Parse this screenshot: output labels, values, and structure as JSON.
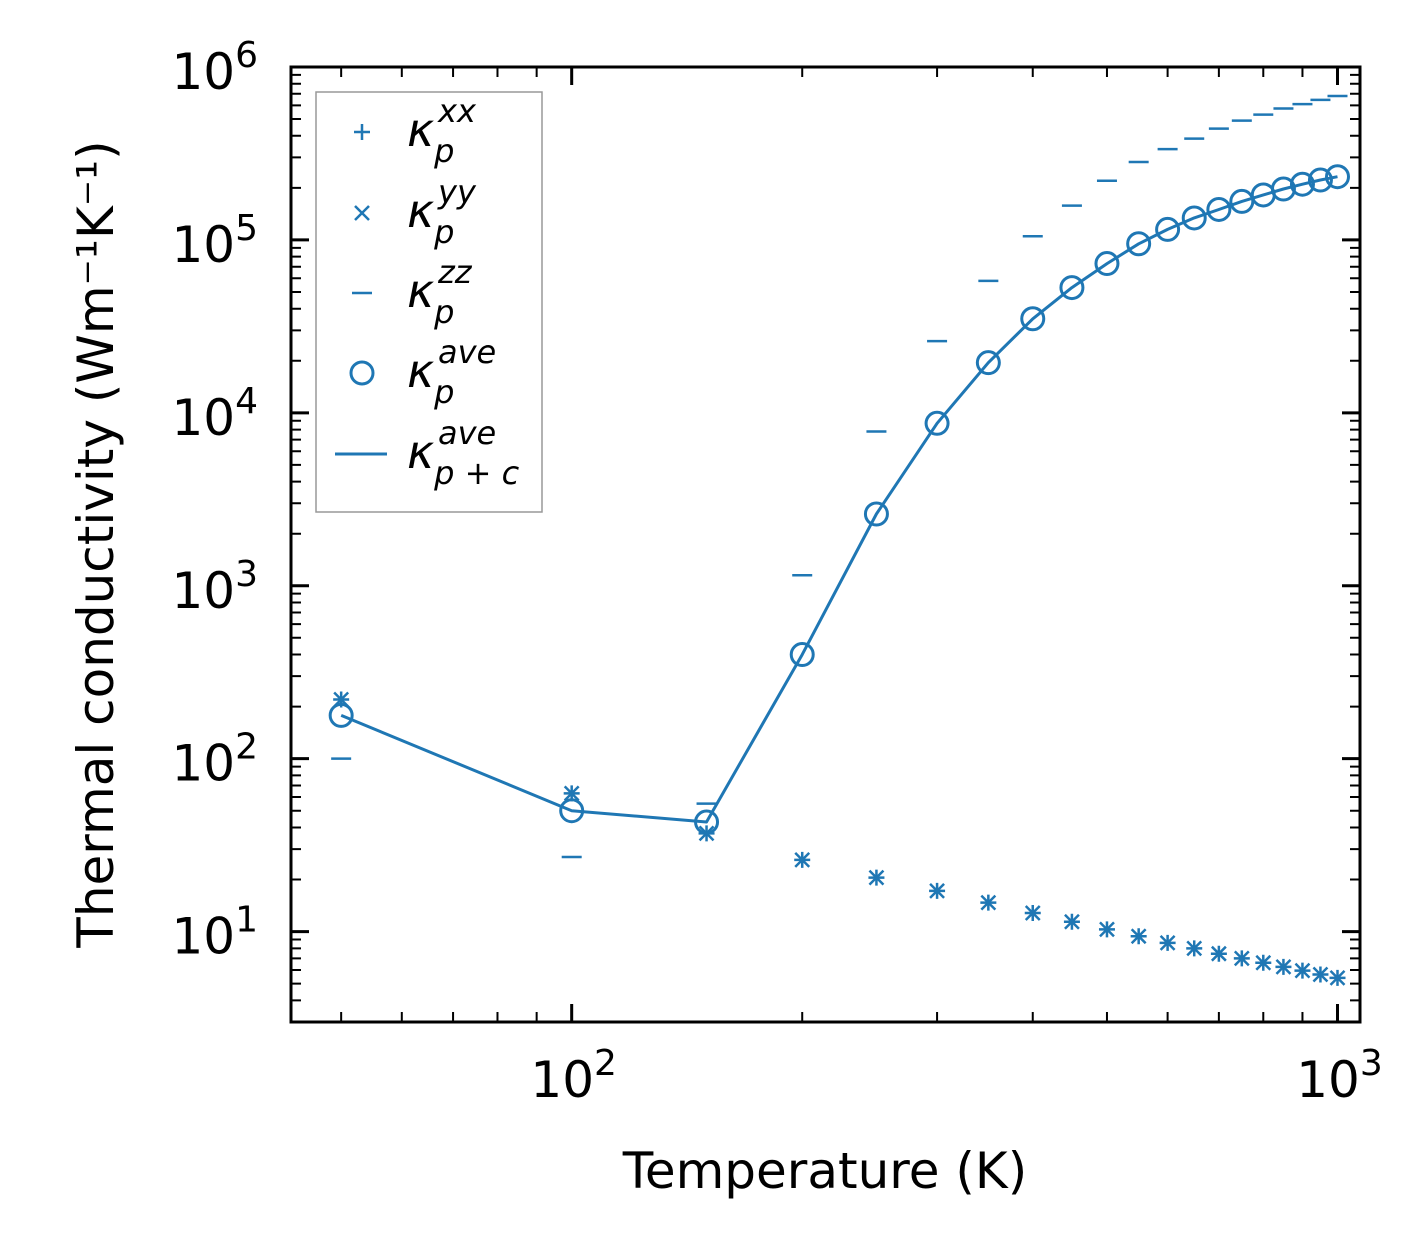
{
  "chart_data": {
    "type": "scatter",
    "xscale": "log",
    "yscale": "log",
    "xlabel": "Temperature (K)",
    "ylabel": "Thermal conductivity (Wm⁻¹K⁻¹)",
    "xlim": [
      43,
      1070
    ],
    "ylim": [
      3,
      1000000
    ],
    "x_tick_labels": [
      {
        "value": 100,
        "base": "10",
        "exp": "2"
      },
      {
        "value": 1000,
        "base": "10",
        "exp": "3"
      }
    ],
    "y_tick_labels": [
      {
        "value": 10,
        "base": "10",
        "exp": "1"
      },
      {
        "value": 100,
        "base": "10",
        "exp": "2"
      },
      {
        "value": 1000,
        "base": "10",
        "exp": "3"
      },
      {
        "value": 10000,
        "base": "10",
        "exp": "4"
      },
      {
        "value": 100000,
        "base": "10",
        "exp": "5"
      },
      {
        "value": 1000000,
        "base": "10",
        "exp": "6"
      }
    ],
    "color": "#1f77b4",
    "x": [
      50,
      100,
      150,
      200,
      250,
      300,
      350,
      400,
      450,
      500,
      550,
      600,
      650,
      700,
      750,
      800,
      850,
      900,
      950,
      1000
    ],
    "series": [
      {
        "name": "kxx",
        "label_base": "κ",
        "label_sub": "p",
        "label_sup": "xx",
        "marker": "plus",
        "values": [
          220,
          63,
          37,
          26,
          20.5,
          17.2,
          14.7,
          12.8,
          11.4,
          10.3,
          9.4,
          8.6,
          8.0,
          7.45,
          7.0,
          6.6,
          6.25,
          5.95,
          5.65,
          5.4
        ]
      },
      {
        "name": "kyy",
        "label_base": "κ",
        "label_sub": "p",
        "label_sup": "yy",
        "marker": "x",
        "values": [
          220,
          63,
          37,
          26,
          20.5,
          17.2,
          14.7,
          12.8,
          11.4,
          10.3,
          9.4,
          8.6,
          8.0,
          7.45,
          7.0,
          6.6,
          6.25,
          5.95,
          5.65,
          5.4
        ]
      },
      {
        "name": "kzz",
        "label_base": "κ",
        "label_sub": "p",
        "label_sup": "zz",
        "marker": "hline",
        "values": [
          100,
          27,
          55,
          1150,
          7800,
          26000,
          58000,
          105000,
          158000,
          220000,
          282000,
          335000,
          385000,
          440000,
          490000,
          530000,
          575000,
          610000,
          645000,
          680000
        ]
      },
      {
        "name": "kave",
        "label_base": "κ",
        "label_sub": "p",
        "label_sup": "ave",
        "marker": "circle",
        "values": [
          178,
          50,
          43,
          400,
          2600,
          8700,
          19500,
          35000,
          53000,
          73000,
          95000,
          115000,
          134000,
          150000,
          167000,
          182000,
          197000,
          210000,
          222000,
          232000
        ]
      },
      {
        "name": "kave_pc",
        "label_base": "κ",
        "label_sub": "p + c",
        "label_sup": "ave",
        "marker": "line",
        "values": [
          178,
          50,
          43,
          400,
          2600,
          8700,
          19500,
          35000,
          53000,
          73000,
          95000,
          115000,
          134000,
          150000,
          167000,
          182000,
          197000,
          210000,
          222000,
          232000
        ]
      }
    ],
    "legend_position": "upper-left"
  }
}
